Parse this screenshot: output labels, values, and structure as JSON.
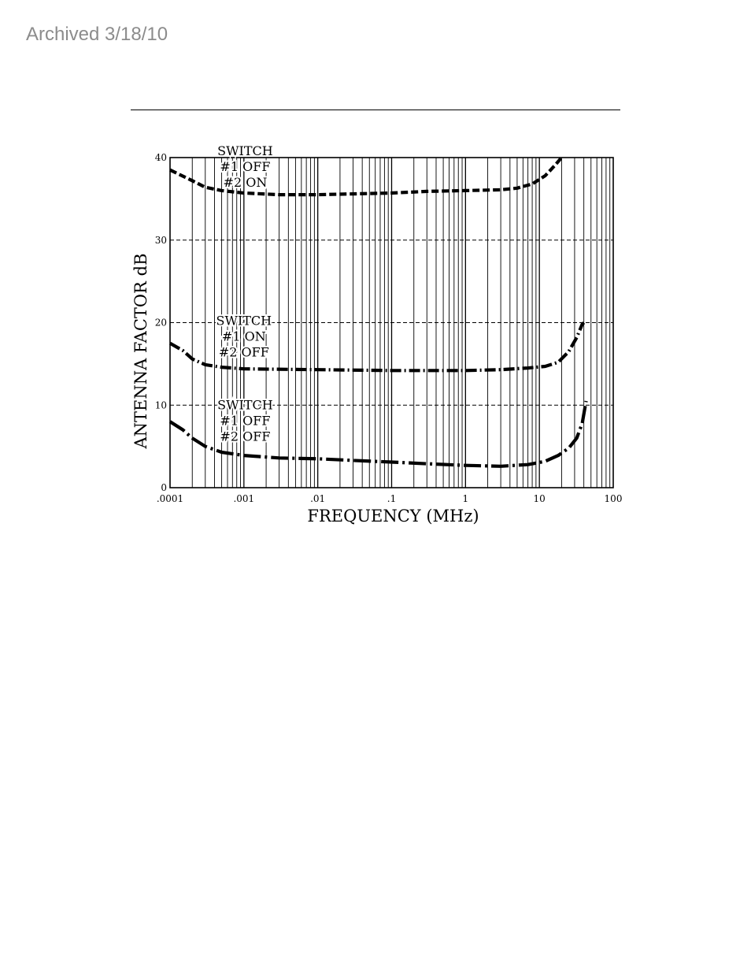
{
  "header": {
    "archived_text": "Archived 3/18/10"
  },
  "chart_data": {
    "type": "line",
    "title": "",
    "xlabel": "FREQUENCY (MHz)",
    "ylabel": "ANTENNA FACTOR dB",
    "x_scale": "log",
    "xlim": [
      0.0001,
      100
    ],
    "ylim": [
      0,
      40
    ],
    "x_ticks": [
      ".0001",
      ".001",
      ".01",
      ".1",
      "1",
      "10",
      "100"
    ],
    "x_tick_values": [
      0.0001,
      0.001,
      0.01,
      0.1,
      1,
      10,
      100
    ],
    "y_ticks": [
      "0",
      "10",
      "20",
      "30",
      "40"
    ],
    "y_tick_values": [
      0,
      10,
      20,
      30,
      40
    ],
    "grid": {
      "vertical": "solid",
      "horizontal": "dashed"
    },
    "series": [
      {
        "label_lines": [
          "SWITCH",
          "#1 OFF",
          "#2 ON"
        ],
        "style": "dashed",
        "label_at": [
          0.00104,
          40.3
        ],
        "points": [
          [
            0.0001,
            38.5
          ],
          [
            0.0002,
            37.2
          ],
          [
            0.0003,
            36.4
          ],
          [
            0.0005,
            36.0
          ],
          [
            0.001,
            35.7
          ],
          [
            0.003,
            35.5
          ],
          [
            0.01,
            35.5
          ],
          [
            0.03,
            35.6
          ],
          [
            0.1,
            35.7
          ],
          [
            0.3,
            35.9
          ],
          [
            1,
            36.0
          ],
          [
            3,
            36.1
          ],
          [
            5,
            36.3
          ],
          [
            8,
            36.8
          ],
          [
            12,
            37.8
          ],
          [
            16,
            39.0
          ],
          [
            20,
            40.0
          ]
        ]
      },
      {
        "label_lines": [
          "SWITCH",
          "#1 ON",
          "#2 OFF"
        ],
        "style": "dash-dot",
        "label_at": [
          0.001,
          19.7
        ],
        "points": [
          [
            0.0001,
            17.5
          ],
          [
            0.00015,
            16.6
          ],
          [
            0.0002,
            15.6
          ],
          [
            0.0003,
            14.9
          ],
          [
            0.0005,
            14.6
          ],
          [
            0.001,
            14.4
          ],
          [
            0.01,
            14.3
          ],
          [
            0.1,
            14.2
          ],
          [
            1,
            14.2
          ],
          [
            3,
            14.3
          ],
          [
            7,
            14.5
          ],
          [
            12,
            14.7
          ],
          [
            18,
            15.2
          ],
          [
            25,
            16.5
          ],
          [
            32,
            18.2
          ],
          [
            38,
            19.8
          ],
          [
            40,
            20.0
          ]
        ]
      },
      {
        "label_lines": [
          "SWITCH",
          "#1 OFF",
          "#2 OFF"
        ],
        "style": "long-dash-dot",
        "label_at": [
          0.00104,
          9.5
        ],
        "points": [
          [
            0.0001,
            8.0
          ],
          [
            0.00015,
            7.0
          ],
          [
            0.0002,
            6.0
          ],
          [
            0.0003,
            5.0
          ],
          [
            0.0005,
            4.3
          ],
          [
            0.001,
            3.9
          ],
          [
            0.003,
            3.6
          ],
          [
            0.01,
            3.5
          ],
          [
            0.03,
            3.3
          ],
          [
            0.1,
            3.1
          ],
          [
            0.3,
            2.9
          ],
          [
            1,
            2.7
          ],
          [
            3,
            2.6
          ],
          [
            7,
            2.8
          ],
          [
            12,
            3.2
          ],
          [
            18,
            3.9
          ],
          [
            25,
            4.8
          ],
          [
            32,
            6.0
          ],
          [
            38,
            7.8
          ],
          [
            41,
            9.5
          ],
          [
            43,
            10.5
          ]
        ]
      }
    ]
  }
}
